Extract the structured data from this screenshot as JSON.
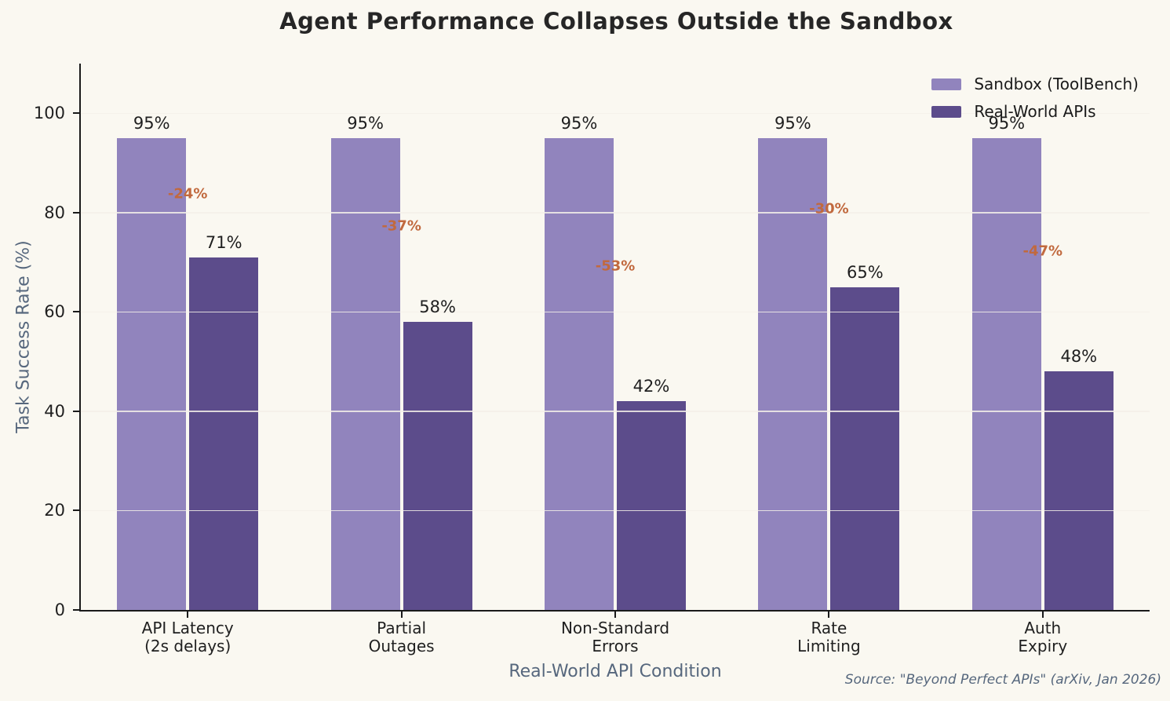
{
  "title": "Agent Performance Collapses Outside the Sandbox",
  "source_note": "Source: \"Beyond Perfect APIs\" (arXiv, Jan 2026)",
  "colors": {
    "background": "#FAF8F1",
    "sandbox_bar": "#9184BD",
    "real_world_bar": "#5C4C8B",
    "delta_text": "#C1693E",
    "axis_title_text": "#56677D",
    "tick_text": "#1F1F1F",
    "spine": "#1A1A1A"
  },
  "chart_data": {
    "type": "bar",
    "title": "Agent Performance Collapses Outside the Sandbox",
    "xlabel": "Real-World API Condition",
    "ylabel": "Task Success Rate (%)",
    "ylim": [
      0,
      110
    ],
    "yticks": [
      0,
      20,
      40,
      60,
      80,
      100
    ],
    "grid": true,
    "legend_position": "upper right",
    "categories": [
      [
        "API Latency",
        "(2s delays)"
      ],
      [
        "Partial",
        "Outages"
      ],
      [
        "Non-Standard",
        "Errors"
      ],
      [
        "Rate",
        "Limiting"
      ],
      [
        "Auth",
        "Expiry"
      ]
    ],
    "series": [
      {
        "name": "Sandbox (ToolBench)",
        "color": "#9184BD",
        "values": [
          95,
          95,
          95,
          95,
          95
        ],
        "labels": [
          "95%",
          "95%",
          "95%",
          "95%",
          "95%"
        ]
      },
      {
        "name": "Real-World APIs",
        "color": "#5C4C8B",
        "values": [
          71,
          58,
          42,
          65,
          48
        ],
        "labels": [
          "71%",
          "58%",
          "42%",
          "65%",
          "48%"
        ]
      }
    ],
    "delta_labels": [
      "-24%",
      "-37%",
      "-53%",
      "-30%",
      "-47%"
    ]
  }
}
